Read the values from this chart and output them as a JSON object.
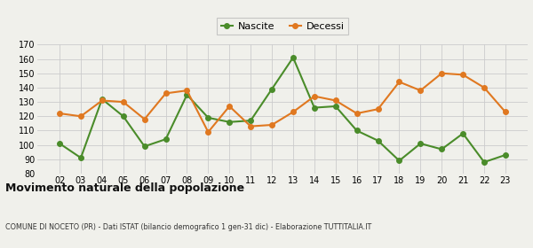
{
  "years": [
    "02",
    "03",
    "04",
    "05",
    "06",
    "07",
    "08",
    "09",
    "10",
    "11",
    "12",
    "13",
    "14",
    "15",
    "16",
    "17",
    "18",
    "19",
    "20",
    "21",
    "22",
    "23"
  ],
  "nascite": [
    101,
    91,
    132,
    120,
    99,
    104,
    135,
    119,
    116,
    117,
    139,
    161,
    126,
    127,
    110,
    103,
    89,
    101,
    97,
    108,
    88,
    93
  ],
  "decessi": [
    122,
    120,
    131,
    130,
    118,
    136,
    138,
    109,
    127,
    113,
    114,
    123,
    134,
    131,
    122,
    125,
    144,
    138,
    150,
    149,
    140,
    123
  ],
  "nascite_color": "#4a8c2a",
  "decessi_color": "#e07820",
  "bg_color": "#f0f0eb",
  "grid_color": "#cccccc",
  "ylim": [
    80,
    170
  ],
  "yticks": [
    80,
    90,
    100,
    110,
    120,
    130,
    140,
    150,
    160,
    170
  ],
  "title": "Movimento naturale della popolazione",
  "subtitle": "COMUNE DI NOCETO (PR) - Dati ISTAT (bilancio demografico 1 gen-31 dic) - Elaborazione TUTTITALIA.IT",
  "legend_nascite": "Nascite",
  "legend_decessi": "Decessi",
  "marker_size": 4,
  "line_width": 1.5
}
